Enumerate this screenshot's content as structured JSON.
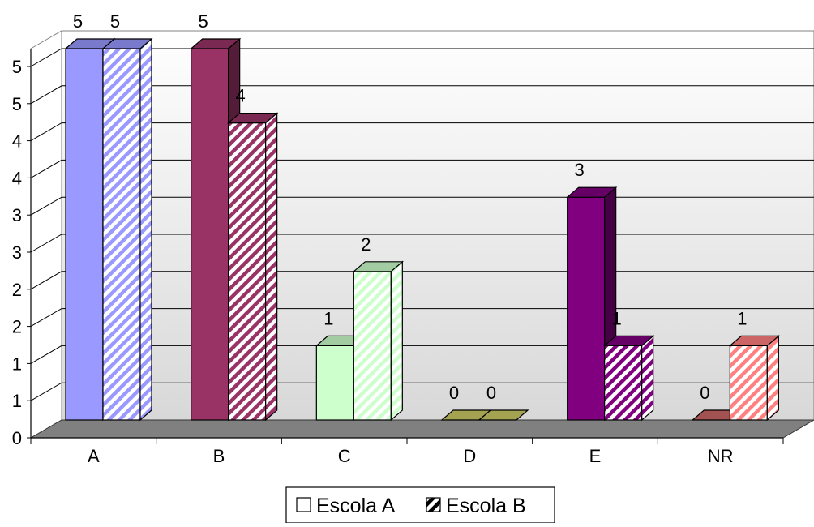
{
  "chart_data": {
    "type": "bar",
    "categories": [
      "A",
      "B",
      "C",
      "D",
      "E",
      "NR"
    ],
    "y_tick_labels": [
      "0",
      "1",
      "1",
      "2",
      "2",
      "3",
      "3",
      "4",
      "4",
      "5",
      "5"
    ],
    "ylim": [
      0,
      5
    ],
    "grid": true,
    "legend_position": "bottom",
    "series": [
      {
        "name": "Escola A",
        "values": [
          5,
          5,
          1,
          0,
          3,
          0
        ],
        "data_labels": [
          "5",
          "5",
          "1",
          "0",
          "3",
          "0"
        ],
        "pattern": "solid",
        "colors": [
          "#9999ff",
          "#993366",
          "#ccffcc",
          "#cccc66",
          "#800080",
          "#cc6666"
        ]
      },
      {
        "name": "Escola B",
        "values": [
          5,
          4,
          2,
          0,
          1,
          1
        ],
        "data_labels": [
          "5",
          "4",
          "2",
          "0",
          "1",
          "1"
        ],
        "pattern": "hatched",
        "colors": [
          "#9999ff",
          "#993366",
          "#ccffcc",
          "#cccc66",
          "#800080",
          "#ff8080"
        ]
      }
    ]
  }
}
